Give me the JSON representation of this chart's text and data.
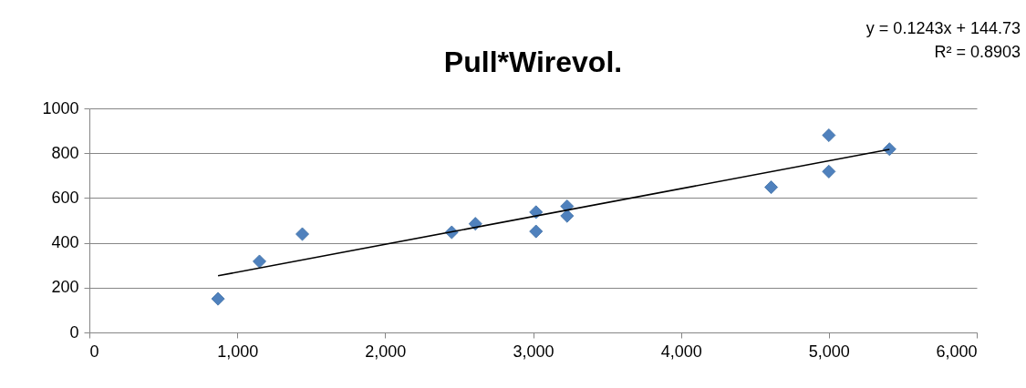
{
  "chart_data": {
    "type": "scatter",
    "title": "Pull*Wirevol.",
    "annotations": [
      "y = 0.1243x + 144.73",
      "R² = 0.8903"
    ],
    "xlim": [
      0,
      6000
    ],
    "xticks": [
      0,
      {
        "value": 1000,
        "label": "1,000"
      },
      {
        "value": 2000,
        "label": "2,000"
      },
      {
        "value": 3000,
        "label": "3,000"
      },
      {
        "value": 4000,
        "label": "4,000"
      },
      {
        "value": 5000,
        "label": "5,000"
      },
      {
        "value": 6000,
        "label": "6,000"
      }
    ],
    "ylim": [
      0,
      1000
    ],
    "yticks": [
      0,
      200,
      400,
      600,
      800,
      1000
    ],
    "grid": "y",
    "marker": "diamond",
    "series": [
      {
        "color": "#4f81bd",
        "x": [
          870,
          1150,
          1440,
          2450,
          2610,
          3020,
          3020,
          3230,
          3230,
          4610,
          5000,
          5000,
          5410
        ],
        "values": [
          150,
          317,
          439,
          447,
          485,
          537,
          451,
          563,
          520,
          648,
          880,
          718,
          818
        ]
      },
      {
        "type": "line",
        "marker": "none",
        "color": "#000000",
        "x": [
          870,
          5410
        ],
        "values": [
          253,
          817
        ]
      }
    ]
  }
}
